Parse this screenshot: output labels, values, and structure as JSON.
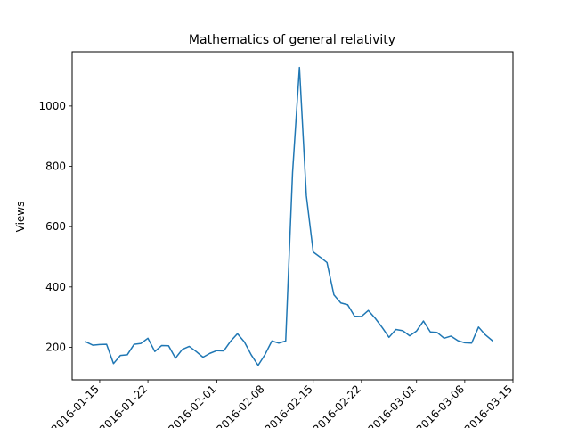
{
  "chart_data": {
    "type": "line",
    "title": "Mathematics of general relativity",
    "xlabel": "",
    "ylabel": "Views",
    "x_tick_labels": [
      "2016-01-15",
      "2016-01-22",
      "2016-02-01",
      "2016-02-08",
      "2016-02-15",
      "2016-02-22",
      "2016-03-01",
      "2016-03-08",
      "2016-03-15"
    ],
    "y_ticks": [
      200,
      400,
      600,
      800,
      1000
    ],
    "xlim": [
      "2016-01-11",
      "2016-03-15"
    ],
    "ylim": [
      92,
      1180
    ],
    "grid": false,
    "line_color": "#1f77b4",
    "series": [
      {
        "x": [
          "2016-01-13",
          "2016-01-14",
          "2016-01-15",
          "2016-01-16",
          "2016-01-17",
          "2016-01-18",
          "2016-01-19",
          "2016-01-20",
          "2016-01-21",
          "2016-01-22",
          "2016-01-23",
          "2016-01-24",
          "2016-01-25",
          "2016-01-26",
          "2016-01-27",
          "2016-01-28",
          "2016-01-29",
          "2016-01-30",
          "2016-01-31",
          "2016-02-01",
          "2016-02-02",
          "2016-02-03",
          "2016-02-04",
          "2016-02-05",
          "2016-02-06",
          "2016-02-07",
          "2016-02-08",
          "2016-02-09",
          "2016-02-10",
          "2016-02-11",
          "2016-02-12",
          "2016-02-13",
          "2016-02-14",
          "2016-02-15",
          "2016-02-16",
          "2016-02-17",
          "2016-02-18",
          "2016-02-19",
          "2016-02-20",
          "2016-02-21",
          "2016-02-22",
          "2016-02-23",
          "2016-02-24",
          "2016-02-25",
          "2016-02-26",
          "2016-02-27",
          "2016-02-28",
          "2016-02-29",
          "2016-03-01",
          "2016-03-02",
          "2016-03-03",
          "2016-03-04",
          "2016-03-05",
          "2016-03-06",
          "2016-03-07",
          "2016-03-08",
          "2016-03-09",
          "2016-03-10",
          "2016-03-11",
          "2016-03-12"
        ],
        "y": [
          218,
          207,
          209,
          210,
          146,
          173,
          175,
          210,
          213,
          230,
          186,
          206,
          205,
          164,
          193,
          203,
          186,
          167,
          180,
          189,
          188,
          220,
          245,
          218,
          175,
          140,
          176,
          221,
          214,
          221,
          780,
          1128,
          703,
          516,
          499,
          481,
          374,
          347,
          341,
          303,
          302,
          322,
          296,
          266,
          233,
          259,
          255,
          238,
          254,
          287,
          251,
          249,
          230,
          237,
          222,
          215,
          214,
          267,
          241,
          222
        ]
      }
    ]
  }
}
